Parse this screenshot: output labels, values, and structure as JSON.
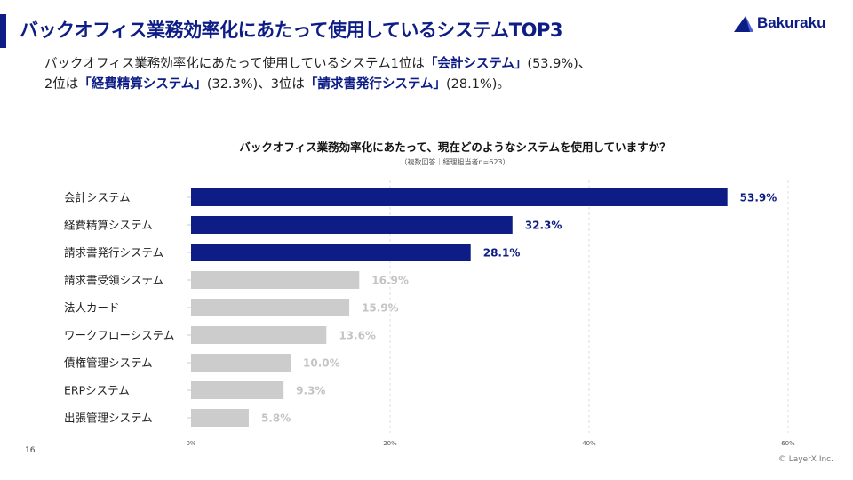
{
  "header": {
    "title": "バックオフィス業務効率化にあたって使用しているシステムTOP3",
    "logo_text": "Bakuraku"
  },
  "summary": {
    "p1": "バックオフィス業務効率化にあたって使用しているシステム1位は",
    "h1": "「会計システム」",
    "p2": "(53.9%)、",
    "p3": "2位は",
    "h2": "「経費精算システム」",
    "p4": "(32.3%)、3位は",
    "h3": "「請求書発行システム」",
    "p5": "(28.1%)。"
  },
  "chart_data": {
    "type": "bar",
    "orientation": "horizontal",
    "title": "バックオフィス業務効率化にあたって、現在どのようなシステムを使用していますか？",
    "subtitle": "（複数回答｜経理担当者n=623）",
    "categories": [
      "会計システム",
      "経費精算システム",
      "請求書発行システム",
      "請求書受領システム",
      "法人カード",
      "ワークフローシステム",
      "債権管理システム",
      "ERPシステム",
      "出張管理システム"
    ],
    "values": [
      53.9,
      32.3,
      28.1,
      16.9,
      15.9,
      13.6,
      10.0,
      9.3,
      5.8
    ],
    "value_labels": [
      "53.9%",
      "32.3%",
      "28.1%",
      "16.9%",
      "15.9%",
      "13.6%",
      "10.0%",
      "9.3%",
      "5.8%"
    ],
    "xlim": [
      0,
      60
    ],
    "xticks": [
      0,
      20,
      40,
      60
    ],
    "xtick_labels": [
      "0%",
      "20%",
      "40%",
      "60%"
    ],
    "highlight_count": 3,
    "colors": {
      "highlight": "#0d1d85",
      "other": "#cccccc",
      "other_label": "#c4c4c4"
    },
    "grid": "vertical-dashed"
  },
  "footer": {
    "page_number": "16",
    "copyright": "© LayerX Inc."
  }
}
